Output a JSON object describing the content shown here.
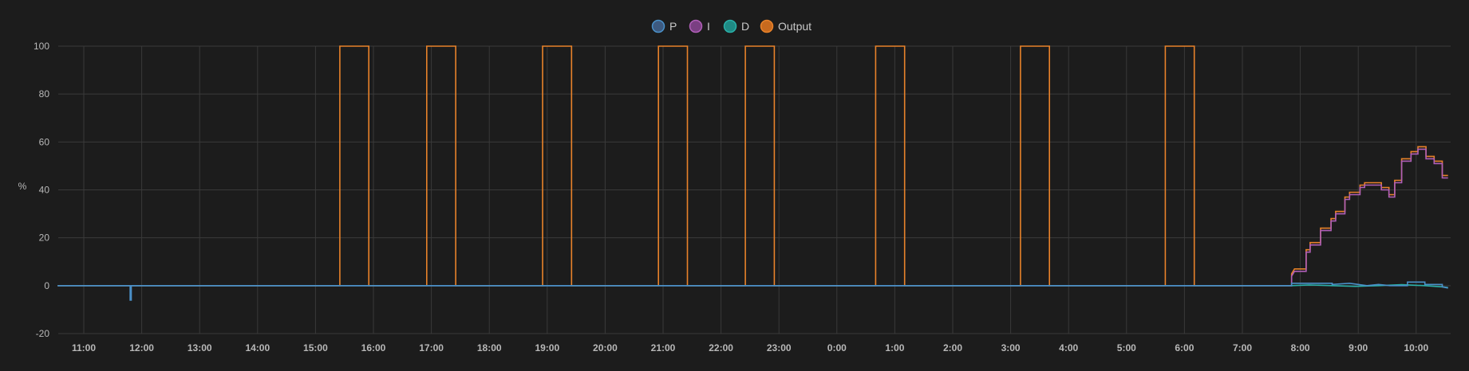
{
  "chart_data": {
    "type": "line",
    "step": true,
    "ylabel": "%",
    "ylim": [
      -20,
      100
    ],
    "yticks": [
      100,
      80,
      60,
      40,
      20,
      0,
      -20
    ],
    "x_tick_labels": [
      "11:00",
      "12:00",
      "13:00",
      "14:00",
      "15:00",
      "16:00",
      "17:00",
      "18:00",
      "19:00",
      "20:00",
      "21:00",
      "22:00",
      "23:00",
      "0:00",
      "1:00",
      "2:00",
      "3:00",
      "4:00",
      "5:00",
      "6:00",
      "7:00",
      "8:00",
      "9:00",
      "10:00"
    ],
    "x_unit": "hours since 10:33",
    "xlim": [
      0,
      24
    ],
    "grid": true,
    "legend_position": "top-center",
    "series": [
      {
        "name": "P",
        "color": "#4a90c8",
        "legend_color": "#3d5a80",
        "points": [
          [
            0,
            0
          ],
          [
            1.25,
            0
          ],
          [
            1.25,
            -6
          ],
          [
            1.27,
            -6
          ],
          [
            1.27,
            0
          ],
          [
            21.3,
            0
          ],
          [
            21.3,
            1
          ],
          [
            22,
            1
          ],
          [
            22,
            0.5
          ],
          [
            22.3,
            1
          ],
          [
            22.6,
            0
          ],
          [
            22.8,
            0.5
          ],
          [
            23,
            0
          ],
          [
            23.3,
            0
          ],
          [
            23.3,
            1.5
          ],
          [
            23.6,
            1.5
          ],
          [
            23.6,
            0.5
          ],
          [
            23.9,
            0.5
          ],
          [
            23.9,
            -0.5
          ],
          [
            24,
            -1
          ]
        ]
      },
      {
        "name": "I",
        "color": "#b05fb8",
        "legend_color": "#7a3f82",
        "points": [
          [
            0,
            0
          ],
          [
            21.3,
            0
          ],
          [
            21.3,
            4
          ],
          [
            21.35,
            6
          ],
          [
            21.55,
            6
          ],
          [
            21.55,
            14
          ],
          [
            21.62,
            14
          ],
          [
            21.62,
            17
          ],
          [
            21.8,
            17
          ],
          [
            21.8,
            23
          ],
          [
            21.98,
            23
          ],
          [
            21.98,
            27
          ],
          [
            22.06,
            27
          ],
          [
            22.06,
            30
          ],
          [
            22.22,
            30
          ],
          [
            22.22,
            36
          ],
          [
            22.3,
            36
          ],
          [
            22.3,
            38
          ],
          [
            22.48,
            38
          ],
          [
            22.48,
            41
          ],
          [
            22.56,
            41
          ],
          [
            22.56,
            42
          ],
          [
            22.85,
            42
          ],
          [
            22.85,
            40
          ],
          [
            22.98,
            40
          ],
          [
            22.98,
            37
          ],
          [
            23.08,
            37
          ],
          [
            23.08,
            43
          ],
          [
            23.2,
            43
          ],
          [
            23.2,
            52
          ],
          [
            23.36,
            52
          ],
          [
            23.36,
            55
          ],
          [
            23.48,
            55
          ],
          [
            23.48,
            57
          ],
          [
            23.62,
            57
          ],
          [
            23.62,
            53
          ],
          [
            23.76,
            53
          ],
          [
            23.76,
            51
          ],
          [
            23.9,
            51
          ],
          [
            23.9,
            45
          ],
          [
            24,
            45
          ]
        ]
      },
      {
        "name": "D",
        "color": "#2ab0a8",
        "legend_color": "#1f8a84",
        "points": [
          [
            0,
            0
          ],
          [
            21.3,
            0
          ],
          [
            21.6,
            0.3
          ],
          [
            22,
            0
          ],
          [
            22.4,
            -0.3
          ],
          [
            22.8,
            0
          ],
          [
            23.2,
            0.4
          ],
          [
            23.6,
            0
          ],
          [
            23.9,
            -0.5
          ],
          [
            24,
            -0.8
          ]
        ]
      },
      {
        "name": "Output",
        "color": "#e8822a",
        "legend_color": "#c86a1e",
        "points": [
          [
            0,
            0
          ],
          [
            4.87,
            0
          ],
          [
            4.87,
            100
          ],
          [
            5.37,
            100
          ],
          [
            5.37,
            0
          ],
          [
            6.37,
            0
          ],
          [
            6.37,
            100
          ],
          [
            6.87,
            100
          ],
          [
            6.87,
            0
          ],
          [
            8.37,
            0
          ],
          [
            8.37,
            100
          ],
          [
            8.87,
            100
          ],
          [
            8.87,
            0
          ],
          [
            10.37,
            0
          ],
          [
            10.37,
            100
          ],
          [
            10.87,
            100
          ],
          [
            10.87,
            0
          ],
          [
            11.87,
            0
          ],
          [
            11.87,
            100
          ],
          [
            12.37,
            100
          ],
          [
            12.37,
            0
          ],
          [
            14.12,
            0
          ],
          [
            14.12,
            100
          ],
          [
            14.62,
            100
          ],
          [
            14.62,
            0
          ],
          [
            16.62,
            0
          ],
          [
            16.62,
            100
          ],
          [
            17.12,
            100
          ],
          [
            17.12,
            0
          ],
          [
            19.12,
            0
          ],
          [
            19.12,
            100
          ],
          [
            19.62,
            100
          ],
          [
            19.62,
            0
          ],
          [
            21.3,
            0
          ],
          [
            21.3,
            5
          ],
          [
            21.35,
            7
          ],
          [
            21.55,
            7
          ],
          [
            21.55,
            15
          ],
          [
            21.62,
            15
          ],
          [
            21.62,
            18
          ],
          [
            21.8,
            18
          ],
          [
            21.8,
            24
          ],
          [
            21.98,
            24
          ],
          [
            21.98,
            28
          ],
          [
            22.06,
            28
          ],
          [
            22.06,
            31
          ],
          [
            22.22,
            31
          ],
          [
            22.22,
            37
          ],
          [
            22.3,
            37
          ],
          [
            22.3,
            39
          ],
          [
            22.48,
            39
          ],
          [
            22.48,
            42
          ],
          [
            22.56,
            42
          ],
          [
            22.56,
            43
          ],
          [
            22.85,
            43
          ],
          [
            22.85,
            41
          ],
          [
            22.98,
            41
          ],
          [
            22.98,
            38
          ],
          [
            23.08,
            38
          ],
          [
            23.08,
            44
          ],
          [
            23.2,
            44
          ],
          [
            23.2,
            53
          ],
          [
            23.36,
            53
          ],
          [
            23.36,
            56
          ],
          [
            23.48,
            56
          ],
          [
            23.48,
            58
          ],
          [
            23.62,
            58
          ],
          [
            23.62,
            54
          ],
          [
            23.76,
            54
          ],
          [
            23.76,
            52
          ],
          [
            23.9,
            52
          ],
          [
            23.9,
            46
          ],
          [
            24,
            46
          ]
        ]
      }
    ]
  }
}
